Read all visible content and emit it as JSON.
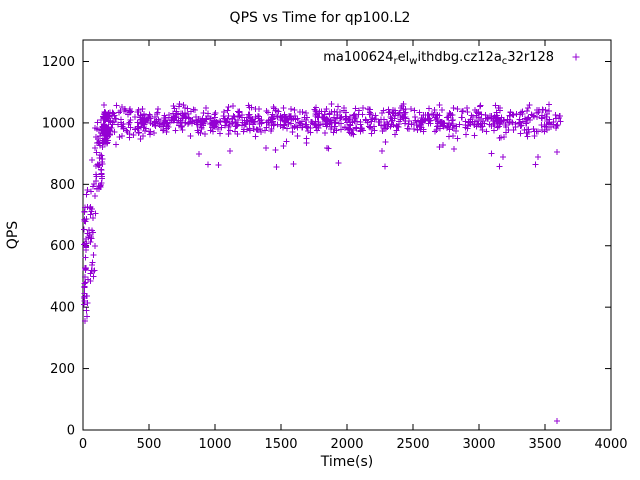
{
  "page": {
    "background": "#ffffff"
  },
  "chart_data": {
    "type": "scatter",
    "title": "QPS vs Time for qp100.L2",
    "xlabel": "Time(s)",
    "ylabel": "QPS",
    "xlim": [
      0,
      4000
    ],
    "ylim": [
      0,
      1270
    ],
    "x_ticks": [
      0,
      500,
      1000,
      1500,
      2000,
      2500,
      3000,
      3500,
      4000
    ],
    "y_ticks": [
      0,
      200,
      400,
      600,
      800,
      1000,
      1200
    ],
    "grid": false,
    "axis_color": "#000000",
    "legend": {
      "position": "top-right-inside",
      "label": "ma100624_rel_withdbg.cz12a_c32r128",
      "label_parts": [
        {
          "text": "ma100624"
        },
        {
          "text": "r",
          "sub": true
        },
        {
          "text": "el"
        },
        {
          "text": "w",
          "sub": true
        },
        {
          "text": "ithdbg.cz12a"
        },
        {
          "text": "c",
          "sub": true
        },
        {
          "text": "32r128"
        }
      ],
      "marker": "plus"
    },
    "marker": {
      "symbol": "plus",
      "color": "#9400d3",
      "half_size": 3
    },
    "series": [
      {
        "name": "qps",
        "description": "QPS ramps from ~350 at t=0 up to ~1000 by t=150s, then holds a dense steady band around 950-1060 QPS until t=3620s, with occasional dips to 855-945 and one stray point near (3590, 30).",
        "generation": {
          "seed": 1337,
          "segments": [
            {
              "kind": "uniform",
              "t": [
                5,
                40
              ],
              "q": [
                350,
                800
              ],
              "count": 42
            },
            {
              "kind": "uniform",
              "t": [
                35,
                95
              ],
              "q": [
                480,
                830
              ],
              "count": 30
            },
            {
              "kind": "uniform",
              "t": [
                85,
                150
              ],
              "q": [
                780,
                1015
              ],
              "count": 45
            },
            {
              "kind": "uniform",
              "t": [
                145,
                210
              ],
              "q": [
                930,
                1035
              ],
              "count": 70
            },
            {
              "kind": "band",
              "t": [
                150,
                3620
              ],
              "mean": 1005,
              "sd": 22,
              "clamp": [
                948,
                1062
              ],
              "count": 950
            },
            {
              "kind": "uniform",
              "t": [
                420,
                3600
              ],
              "q": [
                855,
                945
              ],
              "count": 26
            }
          ],
          "explicit_points": [
            [
              70,
              880
            ],
            [
              250,
              930
            ],
            [
              3590,
              30
            ]
          ]
        }
      }
    ]
  }
}
